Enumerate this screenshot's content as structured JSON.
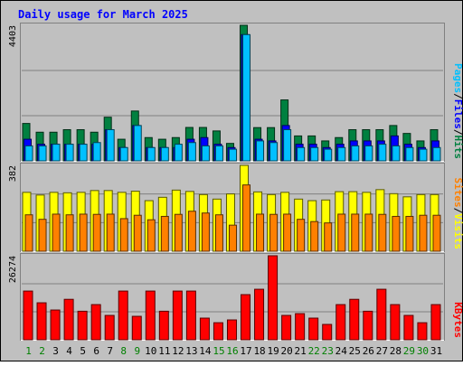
{
  "chart_data": {
    "type": "bar",
    "title": "Daily usage for March 2025",
    "days": [
      1,
      2,
      3,
      4,
      5,
      6,
      7,
      8,
      9,
      10,
      11,
      12,
      13,
      14,
      15,
      16,
      17,
      18,
      19,
      20,
      21,
      22,
      23,
      24,
      25,
      26,
      27,
      28,
      29,
      30,
      31
    ],
    "weekend_days": [
      1,
      2,
      8,
      9,
      15,
      16,
      22,
      23,
      29,
      30
    ],
    "panels": [
      {
        "id": "hits-panel",
        "max_label": "4403",
        "ylim": [
          0,
          4403
        ],
        "series": [
          {
            "name": "Hits",
            "color": "#008040",
            "values": [
              1215,
              931,
              931,
              1013,
              1013,
              931,
              1418,
              702,
              1619,
              756,
              702,
              756,
              1085,
              1085,
              972,
              567,
              4403,
              1080,
              1080,
              1980,
              810,
              810,
              648,
              756,
              1013,
              1013,
              1013,
              1148,
              891,
              648,
              1013
            ]
          },
          {
            "name": "Files",
            "color": "#0000ff",
            "values": [
              702,
              540,
              540,
              540,
              540,
              540,
              1013,
              432,
              1148,
              432,
              432,
              432,
              702,
              756,
              540,
              432,
              4100,
              702,
              648,
              1148,
              540,
              540,
              432,
              540,
              648,
              648,
              648,
              810,
              540,
              432,
              648
            ]
          },
          {
            "name": "Pages",
            "color": "#00c0ff",
            "values": [
              486,
              486,
              540,
              540,
              540,
              594,
              1013,
              432,
              1148,
              432,
              432,
              540,
              594,
              486,
              486,
              378,
              4100,
              648,
              594,
              1013,
              432,
              432,
              378,
              432,
              486,
              486,
              540,
              486,
              432,
              378,
              432
            ]
          }
        ],
        "legend": [
          "Pages",
          "Files",
          "Hits"
        ]
      },
      {
        "id": "visits-panel",
        "max_label": "382",
        "ylim": [
          0,
          382
        ],
        "series": [
          {
            "name": "Visits",
            "color": "#ffff00",
            "values": [
              262,
              250,
              262,
              260,
              262,
              270,
              270,
              262,
              267,
              225,
              240,
              272,
              266,
              252,
              232,
              255,
              382,
              264,
              252,
              262,
              232,
              225,
              228,
              265,
              265,
              262,
              274,
              256,
              242,
              252,
              252
            ]
          },
          {
            "name": "Sites",
            "color": "#ff8000",
            "values": [
              162,
              142,
              165,
              162,
              165,
              164,
              165,
              145,
              160,
              140,
              155,
              164,
              178,
              170,
              162,
              116,
              295,
              165,
              164,
              165,
              142,
              132,
              126,
              165,
              165,
              165,
              164,
              155,
              155,
              160,
              160
            ]
          }
        ],
        "legend": [
          "Sites",
          "Visits"
        ]
      },
      {
        "id": "kbytes-panel",
        "max_label": "26274",
        "ylim": [
          0,
          26274
        ],
        "series": [
          {
            "name": "KBytes",
            "color": "#ff0000",
            "values": [
              15234,
              11566,
              9311,
              12651,
              8927,
              11002,
              7621,
              15234,
              7338,
              15234,
              8927,
              15234,
              15234,
              6775,
              5339,
              6210,
              14119,
              15800,
              26274,
              7621,
              8180,
              6775,
              4804,
              11002,
              12651,
              8927,
              15800,
              11002,
              7621,
              5339,
              11002
            ]
          }
        ],
        "legend": [
          "KBytes"
        ]
      }
    ]
  }
}
